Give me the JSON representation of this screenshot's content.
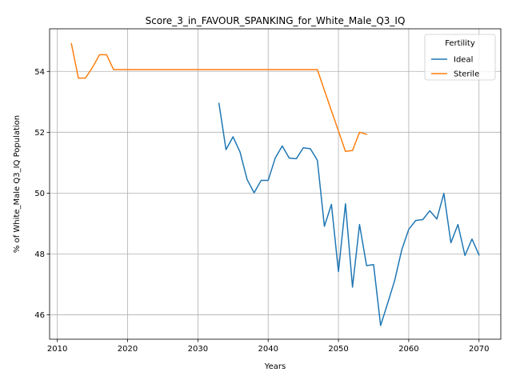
{
  "chart_data": {
    "type": "line",
    "title": "Score_3_in_FAVOUR_SPANKING_for_White_Male_Q3_IQ",
    "xlabel": "Years",
    "ylabel": "% of White_Male Q3_IQ Population",
    "xlim": [
      2008.9,
      2073.1
    ],
    "ylim": [
      45.2,
      55.4
    ],
    "xticks": [
      2010,
      2020,
      2030,
      2040,
      2050,
      2060,
      2070
    ],
    "yticks": [
      46,
      48,
      50,
      52,
      54
    ],
    "grid": true,
    "legend": {
      "title": "Fertility",
      "placement": "top-right"
    },
    "series": [
      {
        "name": "Ideal",
        "color": "#1f77b4",
        "x": [
          2033,
          2034,
          2035,
          2036,
          2037,
          2038,
          2039,
          2040,
          2041,
          2042,
          2043,
          2044,
          2045,
          2046,
          2047,
          2048,
          2049,
          2050,
          2051,
          2052,
          2053,
          2054,
          2055,
          2056,
          2057,
          2058,
          2059,
          2060,
          2061,
          2062,
          2063,
          2064,
          2065,
          2066,
          2067,
          2068,
          2069,
          2070
        ],
        "y": [
          52.95,
          51.43,
          51.85,
          51.35,
          50.45,
          50.01,
          50.42,
          50.42,
          51.15,
          51.55,
          51.15,
          51.13,
          51.49,
          51.46,
          51.08,
          48.91,
          49.63,
          47.42,
          49.65,
          46.91,
          48.97,
          47.62,
          47.65,
          45.65,
          46.38,
          47.13,
          48.13,
          48.81,
          49.1,
          49.13,
          49.42,
          49.15,
          49.99,
          48.37,
          48.97,
          47.95,
          48.49,
          47.97
        ]
      },
      {
        "name": "Sterile",
        "color": "#ff7f0e",
        "x": [
          2012,
          2013,
          2014,
          2015,
          2016,
          2017,
          2018,
          2019,
          2020,
          2021,
          2022,
          2023,
          2024,
          2025,
          2026,
          2027,
          2028,
          2029,
          2030,
          2031,
          2032,
          2033,
          2034,
          2035,
          2036,
          2037,
          2038,
          2039,
          2040,
          2041,
          2042,
          2043,
          2044,
          2045,
          2046,
          2047,
          2048,
          2049,
          2050,
          2051,
          2052,
          2053,
          2054
        ],
        "y": [
          54.91,
          53.78,
          53.78,
          54.13,
          54.55,
          54.55,
          54.06,
          54.06,
          54.06,
          54.06,
          54.06,
          54.06,
          54.06,
          54.06,
          54.06,
          54.06,
          54.06,
          54.06,
          54.06,
          54.06,
          54.06,
          54.06,
          54.06,
          54.06,
          54.06,
          54.06,
          54.06,
          54.06,
          54.06,
          54.06,
          54.06,
          54.06,
          54.06,
          54.06,
          54.06,
          54.06,
          53.38,
          52.71,
          52.04,
          51.37,
          51.4,
          52.0,
          51.93
        ]
      }
    ]
  }
}
